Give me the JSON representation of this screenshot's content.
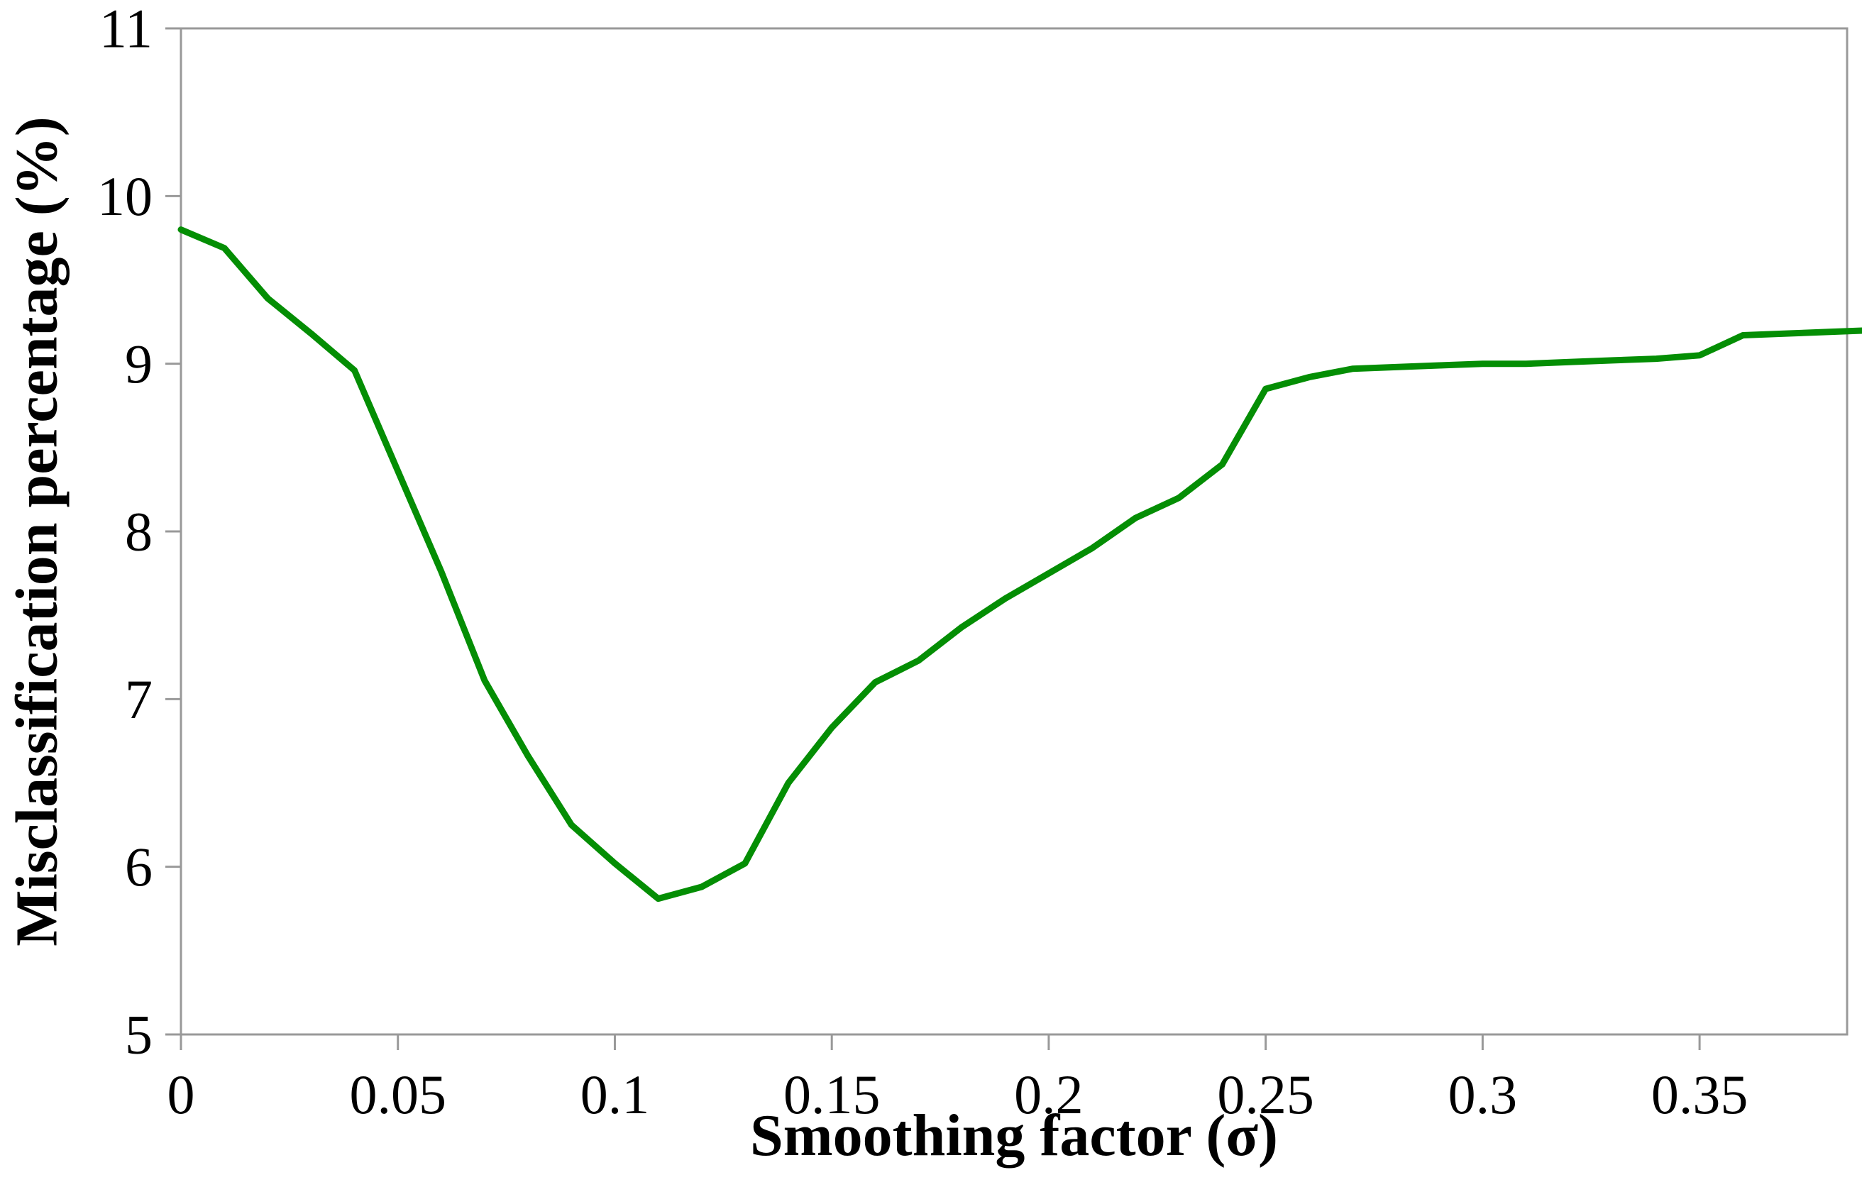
{
  "chart_data": {
    "type": "line",
    "title": "",
    "xlabel": "Smoothing factor (σ)",
    "ylabel": "Misclassification percentage (%)",
    "x": [
      0.0,
      0.01,
      0.02,
      0.03,
      0.04,
      0.05,
      0.06,
      0.07,
      0.08,
      0.09,
      0.1,
      0.11,
      0.12,
      0.13,
      0.14,
      0.15,
      0.16,
      0.17,
      0.18,
      0.19,
      0.2,
      0.21,
      0.22,
      0.23,
      0.24,
      0.25,
      0.26,
      0.27,
      0.28,
      0.29,
      0.3,
      0.31,
      0.32,
      0.33,
      0.34,
      0.35,
      0.36,
      0.37,
      0.38,
      0.39
    ],
    "series": [
      {
        "name": "Misclassification percentage",
        "color": "#048E04",
        "values": [
          9.8,
          9.69,
          9.39,
          9.18,
          8.96,
          8.36,
          7.76,
          7.11,
          6.66,
          6.25,
          6.02,
          5.81,
          5.88,
          6.02,
          6.5,
          6.83,
          7.1,
          7.23,
          7.43,
          7.6,
          7.75,
          7.9,
          8.08,
          8.2,
          8.4,
          8.85,
          8.92,
          8.97,
          8.98,
          8.99,
          9.0,
          9.0,
          9.01,
          9.02,
          9.03,
          9.05,
          9.17,
          9.18,
          9.19,
          9.2
        ]
      }
    ],
    "xlim": [
      0,
      0.384
    ],
    "ylim": [
      5,
      11
    ],
    "x_ticks": [
      0,
      0.05,
      0.1,
      0.15,
      0.2,
      0.25,
      0.3,
      0.35
    ],
    "x_tick_labels": [
      "0",
      "0.05",
      "0.1",
      "0.15",
      "0.2",
      "0.25",
      "0.3",
      "0.35"
    ],
    "y_ticks": [
      5,
      6,
      7,
      8,
      9,
      10,
      11
    ],
    "y_tick_labels": [
      "5",
      "6",
      "7",
      "8",
      "9",
      "10",
      "11"
    ],
    "grid": false,
    "legend": "none",
    "frame": true,
    "axis_color": "#999999",
    "text_color": "#000000",
    "background_color": "#ffffff"
  }
}
